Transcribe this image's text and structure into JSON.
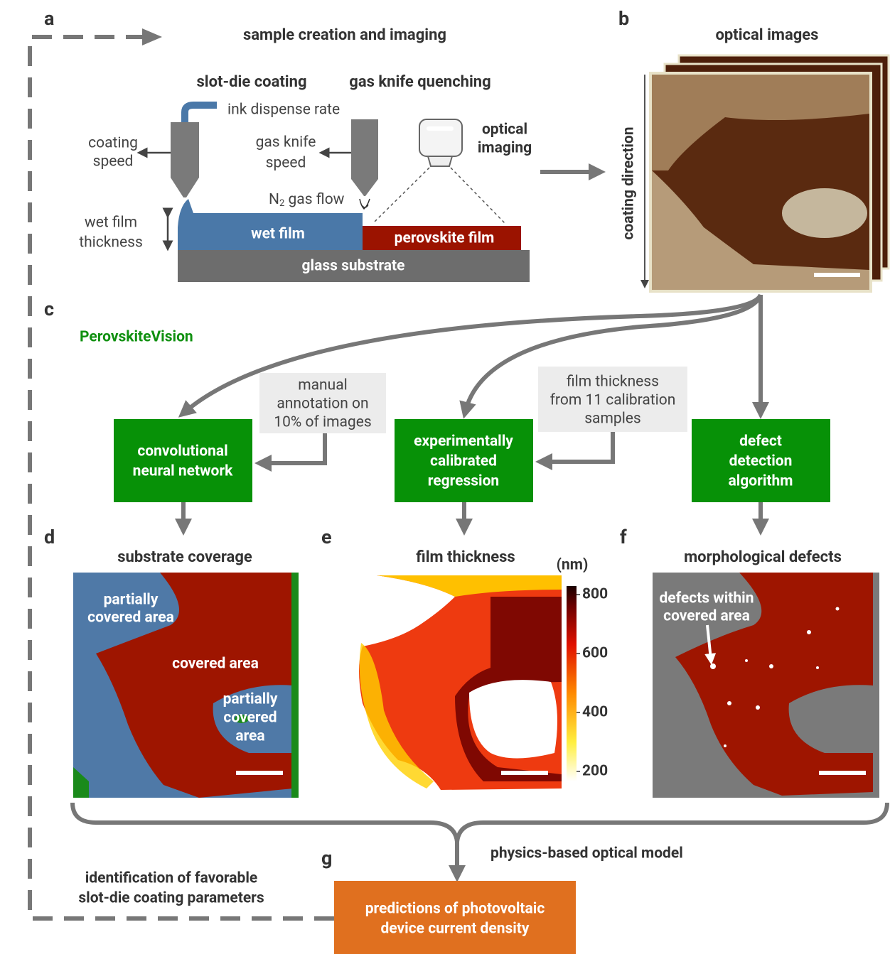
{
  "panel_a": {
    "letter": "a",
    "title": "sample creation and imaging",
    "slot_die_coating": "slot-die coating",
    "gas_knife_quenching": "gas knife quenching",
    "ink_dispense_rate": "ink dispense rate",
    "coating_speed": [
      "coating",
      "speed"
    ],
    "gas_knife_speed": [
      "gas knife",
      "speed"
    ],
    "optical_imaging": [
      "optical",
      "imaging"
    ],
    "gas_flow": {
      "base": "N",
      "sub": "2",
      "rest": " gas flow"
    },
    "wet_film_thickness": [
      "wet film",
      "thickness"
    ],
    "wet_film": "wet film",
    "perovskite_film": "perovskite film",
    "glass_substrate": "glass substrate"
  },
  "panel_b": {
    "letter": "b",
    "title": "optical images",
    "coating_direction": "coating direction"
  },
  "panel_c": {
    "letter": "c",
    "title": "PerovskiteVision",
    "boxes": [
      [
        "convolutional",
        "neural network"
      ],
      [
        "experimentally",
        "calibrated",
        "regression"
      ],
      [
        "defect",
        "detection",
        "algorithm"
      ]
    ],
    "notes": [
      [
        "manual",
        "annotation on",
        "10% of images"
      ],
      [
        "film thickness",
        "from 11 calibration",
        "samples"
      ]
    ]
  },
  "panel_d": {
    "letter": "d",
    "title": "substrate coverage",
    "partially_covered_top": [
      "partially",
      "covered area"
    ],
    "covered_area": "covered area",
    "partially_covered_right": [
      "partially",
      "covered",
      "area"
    ]
  },
  "panel_e": {
    "letter": "e",
    "title": "film thickness",
    "colorbar": {
      "label": "(nm)",
      "lim": [
        166,
        829
      ],
      "ticks": [
        200,
        400,
        600,
        800
      ]
    }
  },
  "panel_f": {
    "letter": "f",
    "title": "morphological defects",
    "defects_label": [
      "defects within",
      "covered area"
    ]
  },
  "panel_g": {
    "letter": "g",
    "model": "physics-based optical model",
    "prediction": [
      "predictions of photovoltaic",
      "device current density"
    ],
    "identification": [
      "identification of favorable",
      "slot-die coating parameters"
    ]
  }
}
